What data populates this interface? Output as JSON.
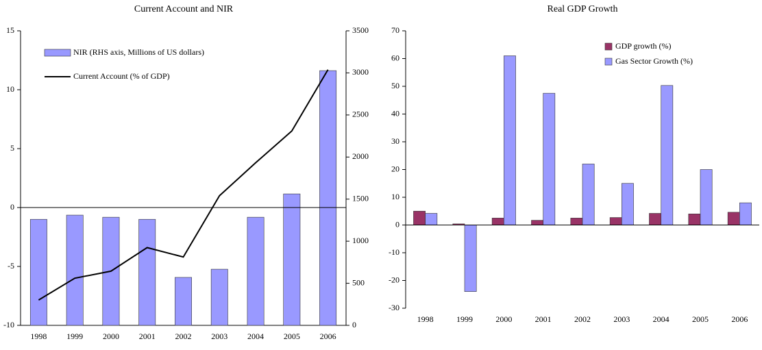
{
  "chart_data": [
    {
      "type": "combo",
      "title": "Current Account and NIR",
      "categories": [
        "1998",
        "1999",
        "2000",
        "2001",
        "2002",
        "2003",
        "2004",
        "2005",
        "2006"
      ],
      "series": [
        {
          "name": "NIR (RHS axis, Millions of US dollars)",
          "type": "bar",
          "axis": "y2",
          "color": "#9999ff",
          "values": [
            1260,
            1310,
            1285,
            1260,
            570,
            667,
            1285,
            1562,
            3027
          ]
        },
        {
          "name": "Current Account (% of GDP)",
          "type": "line",
          "axis": "y",
          "color": "#000000",
          "values": [
            -7.85,
            -6.0,
            -5.4,
            -3.4,
            -4.2,
            1.0,
            3.8,
            6.5,
            11.7
          ]
        }
      ],
      "ylim": [
        -10,
        15
      ],
      "yticks": [
        -10,
        -5,
        0,
        5,
        10,
        15
      ],
      "y2lim": [
        0,
        3500
      ],
      "y2ticks": [
        0,
        500,
        1000,
        1500,
        2000,
        2500,
        3000,
        3500
      ],
      "legend": "upper-left",
      "grid": false
    },
    {
      "type": "bar",
      "title": "Real GDP Growth",
      "categories": [
        "1998",
        "1999",
        "2000",
        "2001",
        "2002",
        "2003",
        "2004",
        "2005",
        "2006"
      ],
      "series": [
        {
          "name": "GDP growth (%)",
          "color": "#993366",
          "values": [
            5.0,
            0.4,
            2.5,
            1.7,
            2.5,
            2.7,
            4.2,
            4.0,
            4.6
          ]
        },
        {
          "name": "Gas Sector Growth (%)",
          "color": "#9999ff",
          "values": [
            4.2,
            -24,
            61,
            47.5,
            22,
            15,
            50.3,
            20,
            8
          ]
        }
      ],
      "ylim": [
        -30,
        70
      ],
      "yticks": [
        -30,
        -20,
        -10,
        0,
        10,
        20,
        30,
        40,
        50,
        60,
        70
      ],
      "legend": "upper-right",
      "grid": false
    }
  ]
}
